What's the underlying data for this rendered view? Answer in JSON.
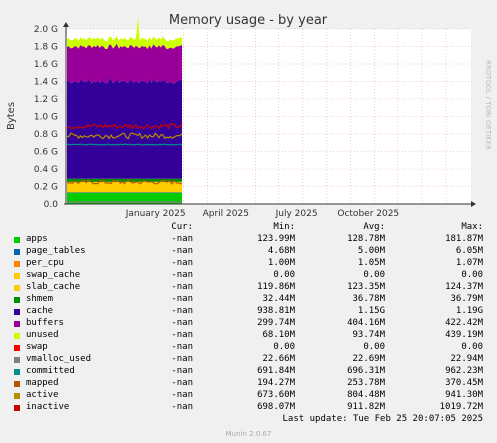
{
  "chart_data": {
    "type": "area",
    "title": "Memory usage - by year",
    "ylabel": "Bytes",
    "side_label": "RRDTOOL / TOBI OETIKER",
    "ylim": [
      0,
      2.0
    ],
    "y_unit": "G",
    "y_ticks": [
      "0.0",
      "0.2 G",
      "0.4 G",
      "0.6 G",
      "0.8 G",
      "1.0 G",
      "1.2 G",
      "1.4 G",
      "1.6 G",
      "1.8 G",
      "2.0 G"
    ],
    "x_ticks": [
      "January 2025",
      "April 2025",
      "July 2025",
      "October 2025"
    ],
    "grid": true,
    "stack_order": [
      "apps",
      "page_tables",
      "per_cpu",
      "swap_cache",
      "slab_cache",
      "shmem",
      "cache",
      "buffers",
      "unused",
      "swap"
    ],
    "line_series": [
      "vmalloc_used",
      "committed",
      "mapped",
      "active",
      "inactive"
    ],
    "series": [
      {
        "name": "apps",
        "color": "#00cc00",
        "cur": "-nan",
        "min": "123.99M",
        "avg": "128.78M",
        "max": "181.87M"
      },
      {
        "name": "page_tables",
        "color": "#0066b3",
        "cur": "-nan",
        "min": "4.68M",
        "avg": "5.00M",
        "max": "6.05M"
      },
      {
        "name": "per_cpu",
        "color": "#ff8000",
        "cur": "-nan",
        "min": "1.00M",
        "avg": "1.05M",
        "max": "1.07M"
      },
      {
        "name": "swap_cache",
        "color": "#ffcc00",
        "cur": "-nan",
        "min": "0.00",
        "avg": "0.00",
        "max": "0.00"
      },
      {
        "name": "slab_cache",
        "color": "#ffcc00",
        "cur": "-nan",
        "min": "119.86M",
        "avg": "123.35M",
        "max": "124.37M"
      },
      {
        "name": "shmem",
        "color": "#008f00",
        "cur": "-nan",
        "min": "32.44M",
        "avg": "36.78M",
        "max": "36.79M"
      },
      {
        "name": "cache",
        "color": "#330099",
        "cur": "-nan",
        "min": "938.81M",
        "avg": "1.15G",
        "max": "1.19G"
      },
      {
        "name": "buffers",
        "color": "#990099",
        "cur": "-nan",
        "min": "299.74M",
        "avg": "404.16M",
        "max": "422.42M"
      },
      {
        "name": "unused",
        "color": "#ccff00",
        "cur": "-nan",
        "min": "68.10M",
        "avg": "93.74M",
        "max": "439.19M"
      },
      {
        "name": "swap",
        "color": "#ff0000",
        "cur": "-nan",
        "min": "0.00",
        "avg": "0.00",
        "max": "0.00"
      },
      {
        "name": "vmalloc_used",
        "color": "#808080",
        "cur": "-nan",
        "min": "22.66M",
        "avg": "22.69M",
        "max": "22.94M"
      },
      {
        "name": "committed",
        "color": "#008f8f",
        "cur": "-nan",
        "min": "691.84M",
        "avg": "696.31M",
        "max": "962.23M"
      },
      {
        "name": "mapped",
        "color": "#b35a00",
        "cur": "-nan",
        "min": "194.27M",
        "avg": "253.78M",
        "max": "370.45M"
      },
      {
        "name": "active",
        "color": "#b38f00",
        "cur": "-nan",
        "min": "673.60M",
        "avg": "804.48M",
        "max": "941.30M"
      },
      {
        "name": "inactive",
        "color": "#cc0000",
        "cur": "-nan",
        "min": "698.07M",
        "avg": "911.82M",
        "max": "1019.72M"
      }
    ]
  },
  "legend": {
    "cur": "Cur:",
    "min": "Min:",
    "avg": "Avg:",
    "max": "Max:"
  },
  "footer": {
    "last_update": "Last update: Tue Feb 25 20:07:05 2025",
    "munin": "Munin 2.0.67"
  }
}
